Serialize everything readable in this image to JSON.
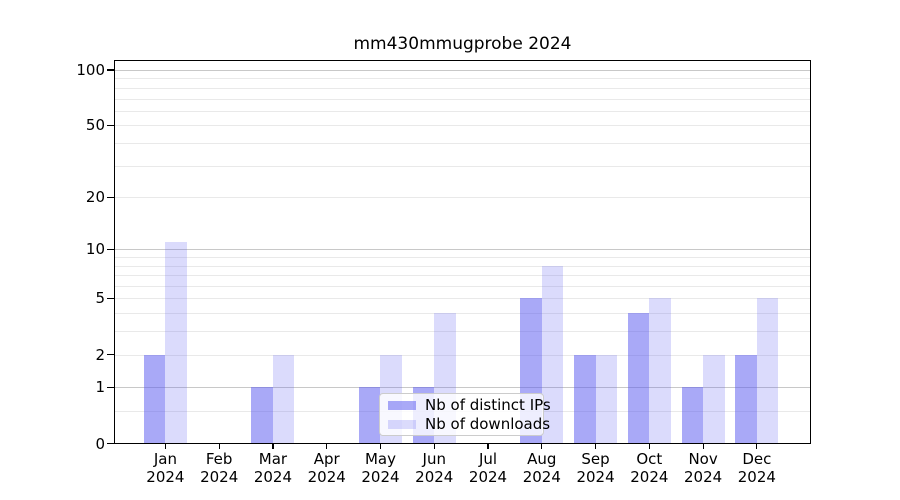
{
  "chart_data": {
    "type": "bar",
    "title": "mm430mmugprobe 2024",
    "x": {
      "categories": [
        "Jan",
        "Feb",
        "Mar",
        "Apr",
        "May",
        "Jun",
        "Jul",
        "Aug",
        "Sep",
        "Oct",
        "Nov",
        "Dec"
      ],
      "year_label": "2024"
    },
    "series": [
      {
        "name": "Nb of distinct IPs",
        "color": "#5a5af0",
        "alpha": 0.52,
        "values": [
          2,
          0,
          1,
          0,
          1,
          1,
          0,
          5,
          2,
          4,
          1,
          2
        ]
      },
      {
        "name": "Nb of downloads",
        "color": "#5a5af0",
        "alpha": 0.22,
        "values": [
          11,
          0,
          2,
          0,
          2,
          4,
          0,
          8,
          2,
          5,
          2,
          5
        ]
      }
    ],
    "y_axis": {
      "scale": "log1p",
      "labeled_ticks": [
        0,
        1,
        2,
        5,
        10,
        20,
        50,
        100
      ],
      "major_gridlines": [
        1,
        10,
        100
      ],
      "minor_gridlines": [
        0.5,
        2,
        3,
        4,
        5,
        6,
        7,
        8,
        9,
        20,
        30,
        40,
        50,
        60,
        70,
        80,
        90
      ],
      "ylim": [
        0,
        113
      ]
    },
    "legend": {
      "position": "lower center"
    },
    "colors": {
      "major_grid": "#c8c8c8",
      "minor_grid": "#e9e9e9",
      "axis": "#000000",
      "text": "#000000",
      "background": "#ffffff"
    }
  }
}
